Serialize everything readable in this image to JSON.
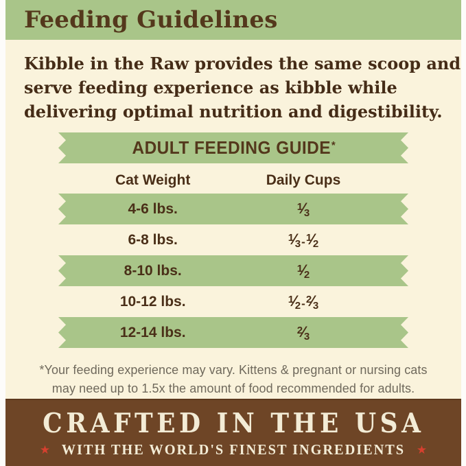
{
  "title": "Feeding Guidelines",
  "intro": {
    "lines": [
      "Kibble in the Raw provides the same scoop and",
      "serve feeding experience as kibble while",
      "delivering optimal nutrition and digestibility."
    ]
  },
  "table": {
    "banner": {
      "label": "ADULT FEEDING GUIDE",
      "asterisk": "*"
    },
    "columns": [
      "Cat Weight",
      "Daily Cups"
    ],
    "rows": [
      {
        "weight": "4-6 lbs.",
        "cups": "1/3"
      },
      {
        "weight": "6-8 lbs.",
        "cups": "1/3-1/2"
      },
      {
        "weight": "8-10 lbs.",
        "cups": "1/2"
      },
      {
        "weight": "10-12 lbs.",
        "cups": "1/2-2/3"
      },
      {
        "weight": "12-14 lbs.",
        "cups": "2/3"
      }
    ]
  },
  "footnote": {
    "line1": "*Your feeding experience may vary. Kittens & pregnant or nursing cats",
    "line2": "may need up to 1.5x the amount of food recommended for adults."
  },
  "footer": {
    "heading": "CRAFTED IN THE USA",
    "subheading": "WITH THE WORLD'S FINEST INGREDIENTS",
    "star": "★"
  },
  "colors": {
    "green": "#a9c589",
    "cream": "#faf3dc",
    "brown_bg": "#6e4526",
    "ink": "#4a2f18",
    "title_ink": "#54381c",
    "footnote_ink": "#6f695c",
    "footer_cream": "#f3ecd6",
    "star_red": "#d6402f"
  }
}
